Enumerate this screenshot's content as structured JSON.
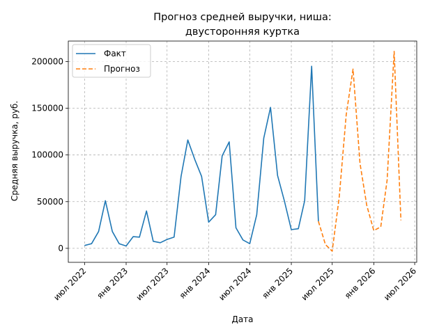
{
  "chart_data": {
    "type": "line",
    "title_lines": [
      "Прогноз средней выручки, ниша:",
      "двусторонняя куртка"
    ],
    "xlabel": "Дата",
    "ylabel": "Средняя выручка, руб.",
    "x_ticks": [
      {
        "date": "2022-07-01",
        "label": "июл 2022"
      },
      {
        "date": "2023-01-01",
        "label": "янв 2023"
      },
      {
        "date": "2023-07-01",
        "label": "июл 2023"
      },
      {
        "date": "2024-01-01",
        "label": "янв 2024"
      },
      {
        "date": "2024-07-01",
        "label": "июл 2024"
      },
      {
        "date": "2025-01-01",
        "label": "янв 2025"
      },
      {
        "date": "2025-07-01",
        "label": "июл 2025"
      },
      {
        "date": "2026-01-01",
        "label": "янв 2026"
      },
      {
        "date": "2026-07-01",
        "label": "июл 2026"
      }
    ],
    "xlim": [
      "2022-04-20",
      "2026-07-10"
    ],
    "y_ticks": [
      0,
      50000,
      100000,
      150000,
      200000
    ],
    "ylim": [
      -15000,
      222000
    ],
    "grid": true,
    "legend_position": "top-left",
    "series": [
      {
        "name": "Факт",
        "color": "#1f77b4",
        "dash": "solid",
        "points": [
          {
            "x": "2022-07-01",
            "y": 3000
          },
          {
            "x": "2022-08-01",
            "y": 5000
          },
          {
            "x": "2022-09-01",
            "y": 18000
          },
          {
            "x": "2022-10-01",
            "y": 51000
          },
          {
            "x": "2022-11-01",
            "y": 18000
          },
          {
            "x": "2022-12-01",
            "y": 5000
          },
          {
            "x": "2023-01-01",
            "y": 2500
          },
          {
            "x": "2023-02-01",
            "y": 12500
          },
          {
            "x": "2023-03-01",
            "y": 12000
          },
          {
            "x": "2023-04-01",
            "y": 40000
          },
          {
            "x": "2023-05-01",
            "y": 7500
          },
          {
            "x": "2023-06-01",
            "y": 6000
          },
          {
            "x": "2023-07-01",
            "y": 9500
          },
          {
            "x": "2023-08-01",
            "y": 12000
          },
          {
            "x": "2023-09-01",
            "y": 77000
          },
          {
            "x": "2023-10-01",
            "y": 116000
          },
          {
            "x": "2023-11-01",
            "y": 95000
          },
          {
            "x": "2023-12-01",
            "y": 77000
          },
          {
            "x": "2024-01-01",
            "y": 28000
          },
          {
            "x": "2024-02-01",
            "y": 36000
          },
          {
            "x": "2024-03-01",
            "y": 99000
          },
          {
            "x": "2024-04-01",
            "y": 114000
          },
          {
            "x": "2024-05-01",
            "y": 22000
          },
          {
            "x": "2024-06-01",
            "y": 9000
          },
          {
            "x": "2024-07-01",
            "y": 5000
          },
          {
            "x": "2024-08-01",
            "y": 36000
          },
          {
            "x": "2024-09-01",
            "y": 118000
          },
          {
            "x": "2024-10-01",
            "y": 151000
          },
          {
            "x": "2024-11-01",
            "y": 78000
          },
          {
            "x": "2024-12-01",
            "y": 51000
          },
          {
            "x": "2025-01-01",
            "y": 20000
          },
          {
            "x": "2025-02-01",
            "y": 21000
          },
          {
            "x": "2025-03-01",
            "y": 51000
          },
          {
            "x": "2025-04-01",
            "y": 195000
          },
          {
            "x": "2025-05-01",
            "y": 29000
          }
        ]
      },
      {
        "name": "Прогноз",
        "color": "#ff7f0e",
        "dash": "dashed",
        "points": [
          {
            "x": "2025-05-01",
            "y": 29000
          },
          {
            "x": "2025-06-01",
            "y": 4000
          },
          {
            "x": "2025-07-01",
            "y": -3000
          },
          {
            "x": "2025-08-01",
            "y": 55000
          },
          {
            "x": "2025-09-01",
            "y": 143000
          },
          {
            "x": "2025-10-01",
            "y": 192000
          },
          {
            "x": "2025-11-01",
            "y": 91000
          },
          {
            "x": "2025-12-01",
            "y": 46000
          },
          {
            "x": "2026-01-01",
            "y": 19000
          },
          {
            "x": "2026-02-01",
            "y": 23000
          },
          {
            "x": "2026-03-01",
            "y": 73000
          },
          {
            "x": "2026-04-01",
            "y": 211000
          },
          {
            "x": "2026-05-01",
            "y": 30000
          }
        ]
      }
    ]
  }
}
